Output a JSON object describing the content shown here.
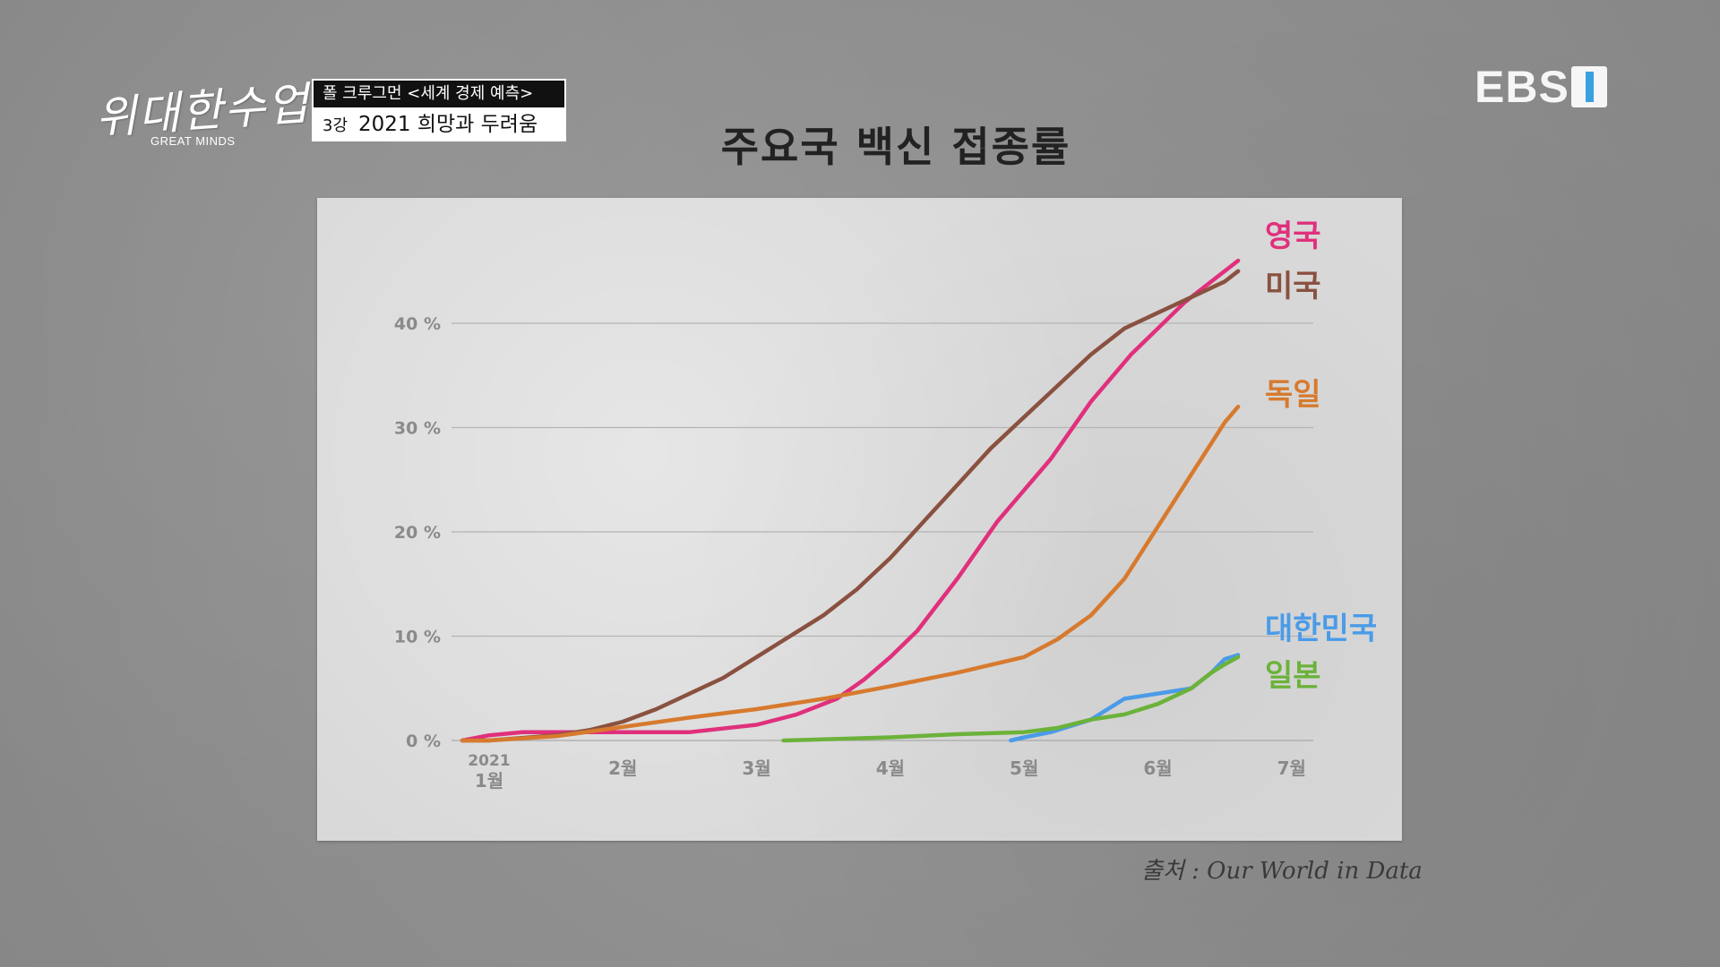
{
  "header": {
    "logo_text": "위대한수업",
    "logo_sub": "GREAT MINDS",
    "lecture_title": "폴 크루그먼 <세계 경제 예측>",
    "episode": "3강",
    "episode_title": "2021 희망과 두려움",
    "channel_logo": "EBS"
  },
  "source": "출처 : Our World in Data",
  "colors": {
    "uk": "#e0307c",
    "us": "#8a5140",
    "de": "#d77a2e",
    "kr": "#4a9be8",
    "jp": "#6cb23a"
  },
  "chart_data": {
    "type": "line",
    "title": "주요국 백신 접종률",
    "ylim": [
      0,
      45
    ],
    "yticks": [
      {
        "value": 0,
        "label": "0 %"
      },
      {
        "value": 10,
        "label": "10 %"
      },
      {
        "value": 20,
        "label": "20 %"
      },
      {
        "value": 30,
        "label": "30 %"
      },
      {
        "value": 40,
        "label": "40 %"
      }
    ],
    "xticks": [
      {
        "value": 0,
        "label": "1월",
        "year": "2021"
      },
      {
        "value": 1,
        "label": "2월"
      },
      {
        "value": 2,
        "label": "3월"
      },
      {
        "value": 3,
        "label": "4월"
      },
      {
        "value": 4,
        "label": "5월"
      },
      {
        "value": 5,
        "label": "6월"
      },
      {
        "value": 6,
        "label": "7월"
      }
    ],
    "grid": true,
    "series": [
      {
        "name": "영국",
        "color": "#e0307c",
        "x": [
          -0.2,
          0,
          0.25,
          0.5,
          1.0,
          1.5,
          2.0,
          2.3,
          2.6,
          2.8,
          3.0,
          3.2,
          3.5,
          3.8,
          4.0,
          4.2,
          4.5,
          4.8,
          5.0,
          5.2,
          5.4,
          5.6
        ],
        "y": [
          0,
          0.5,
          0.8,
          0.8,
          0.8,
          0.8,
          1.5,
          2.5,
          4.0,
          5.8,
          8.0,
          10.5,
          15.5,
          21.0,
          24.0,
          27.0,
          32.5,
          37.0,
          39.5,
          42.0,
          44.0,
          46.0
        ]
      },
      {
        "name": "미국",
        "color": "#8a5140",
        "x": [
          -0.2,
          0,
          0.5,
          0.75,
          1.0,
          1.25,
          1.5,
          1.75,
          2.0,
          2.25,
          2.5,
          2.75,
          3.0,
          3.25,
          3.5,
          3.75,
          4.0,
          4.25,
          4.5,
          4.75,
          5.0,
          5.25,
          5.5,
          5.6
        ],
        "y": [
          0,
          0,
          0.5,
          1.0,
          1.8,
          3.0,
          4.5,
          6.0,
          8.0,
          10.0,
          12.0,
          14.5,
          17.5,
          21.0,
          24.5,
          28.0,
          31.0,
          34.0,
          37.0,
          39.5,
          41.0,
          42.5,
          44.0,
          45.0
        ]
      },
      {
        "name": "독일",
        "color": "#d77a2e",
        "x": [
          -0.2,
          0,
          0.5,
          1.0,
          1.5,
          2.0,
          2.5,
          3.0,
          3.5,
          4.0,
          4.25,
          4.5,
          4.75,
          5.0,
          5.25,
          5.5,
          5.6
        ],
        "y": [
          0,
          0,
          0.4,
          1.3,
          2.2,
          3.0,
          4.0,
          5.2,
          6.5,
          8.0,
          9.7,
          12.0,
          15.5,
          20.5,
          25.5,
          30.5,
          32.0
        ]
      },
      {
        "name": "대한민국",
        "color": "#4a9be8",
        "x": [
          3.9,
          4.0,
          4.2,
          4.5,
          4.75,
          5.0,
          5.25,
          5.4,
          5.5,
          5.6
        ],
        "y": [
          0,
          0.3,
          0.8,
          2.0,
          4.0,
          4.5,
          5.0,
          6.5,
          7.8,
          8.2
        ]
      },
      {
        "name": "일본",
        "color": "#6cb23a",
        "x": [
          2.2,
          2.5,
          3.0,
          3.5,
          4.0,
          4.25,
          4.5,
          4.75,
          5.0,
          5.25,
          5.4,
          5.5,
          5.6
        ],
        "y": [
          0,
          0.1,
          0.3,
          0.6,
          0.8,
          1.2,
          2.0,
          2.5,
          3.5,
          5.0,
          6.5,
          7.3,
          8.0
        ]
      }
    ]
  }
}
